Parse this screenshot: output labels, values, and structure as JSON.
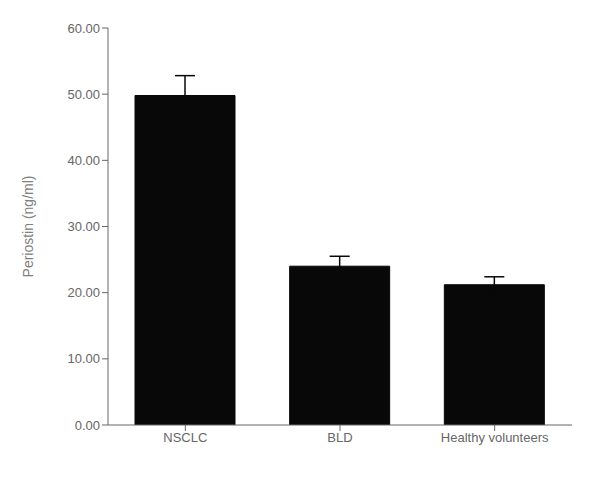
{
  "chart_data": {
    "type": "bar",
    "categories": [
      "NSCLC",
      "BLD",
      "Healthy volunteers"
    ],
    "values": [
      49.8,
      24.0,
      21.2
    ],
    "errors": [
      3.0,
      1.5,
      1.2
    ],
    "color": "#080808",
    "ylabel": "Periostin (ng/ml)",
    "ylim": [
      0,
      60
    ],
    "yticks": [
      {
        "value": 0.0,
        "label": "0.00"
      },
      {
        "value": 10.0,
        "label": "10.00"
      },
      {
        "value": 20.0,
        "label": "20.00"
      },
      {
        "value": 30.0,
        "label": "30.00"
      },
      {
        "value": 40.0,
        "label": "40.00"
      },
      {
        "value": 50.0,
        "label": "50.00"
      },
      {
        "value": 60.0,
        "label": "60.00"
      }
    ],
    "grid": false
  }
}
